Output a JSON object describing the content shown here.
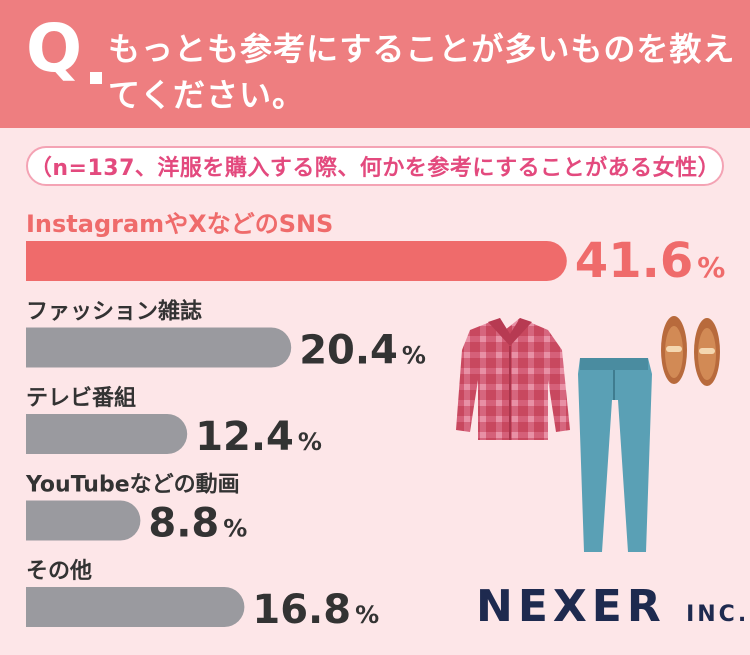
{
  "header": {
    "q_letter": "Q",
    "question": "もっとも参考にすることが多いものを教えてください。"
  },
  "sample_note": "（n=137、洋服を購入する際、何かを参考にすることがある女性）",
  "chart_data": {
    "type": "bar",
    "orientation": "horizontal",
    "categories": [
      "InstagramやXなどのSNS",
      "ファッション雑誌",
      "テレビ番組",
      "YouTubeなどの動画",
      "その他"
    ],
    "values": [
      41.6,
      20.4,
      12.4,
      8.8,
      16.8
    ],
    "value_unit": "%",
    "highlight_index": 0,
    "colors": {
      "highlight_bar": "#ef6b6b",
      "highlight_text": "#ef6b6b",
      "bar": "#9a9a9f",
      "label": "#333333",
      "value": "#333333"
    }
  },
  "logo": {
    "name": "NEXER",
    "suffix": "INC."
  }
}
